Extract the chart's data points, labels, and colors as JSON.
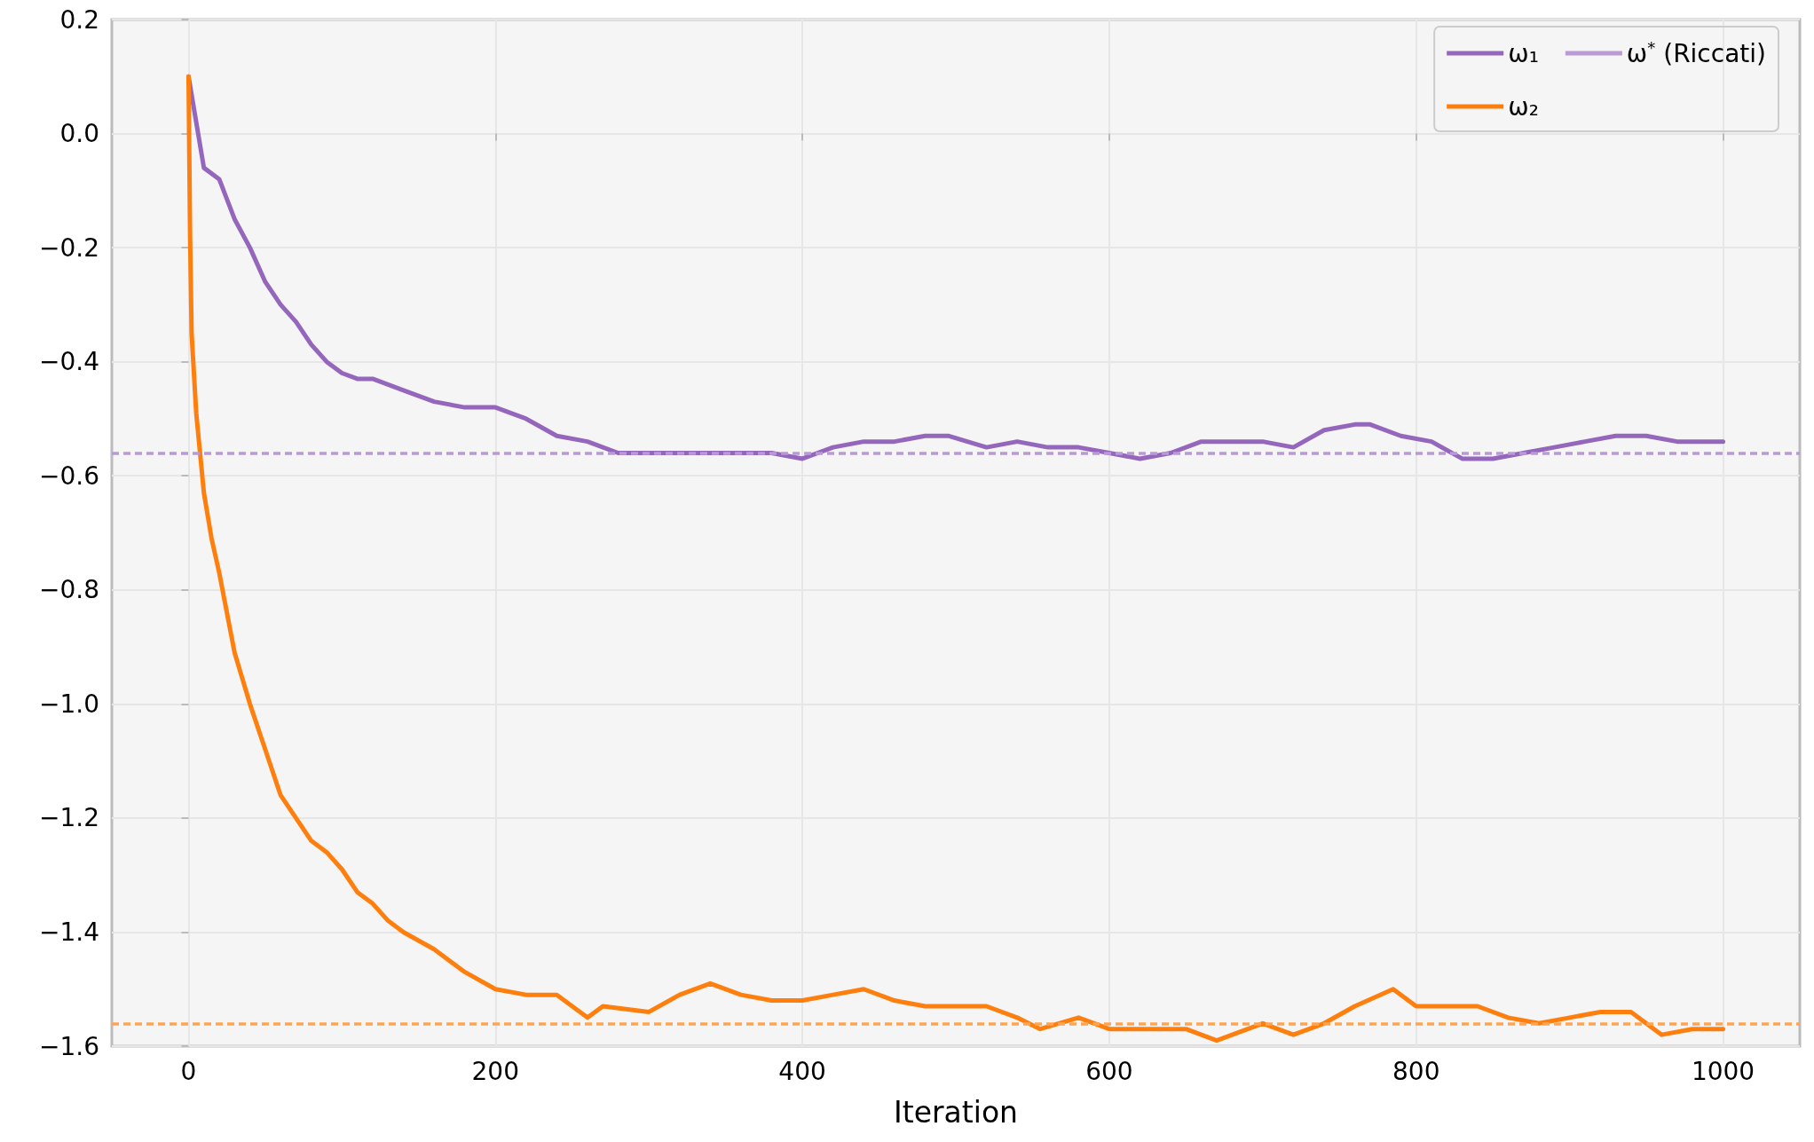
{
  "chart_data": {
    "type": "line",
    "xlabel": "Iteration",
    "xlim": [
      -50,
      1050
    ],
    "xticks": [
      0,
      200,
      400,
      600,
      800,
      1000
    ],
    "ylim": [
      -1.6,
      0.2
    ],
    "yticks": [
      -1.6,
      -1.4,
      -1.2,
      {
        "value": -1.0,
        "label": "−1.0"
      },
      -0.8,
      -0.6,
      -0.4,
      -0.2,
      {
        "value": 0,
        "label": "0.0"
      },
      0.2
    ],
    "grid": true,
    "legend": "top right",
    "line_style": "solid",
    "marker": "none",
    "series": [
      {
        "name": "ω₁",
        "color": "#9467bd",
        "x": [
          0,
          10,
          20,
          30,
          40,
          50,
          60,
          70,
          80,
          90,
          100,
          110,
          120,
          140,
          160,
          180,
          200,
          220,
          240,
          260,
          280,
          300,
          320,
          340,
          360,
          380,
          400,
          420,
          440,
          460,
          480,
          495,
          520,
          540,
          560,
          580,
          600,
          620,
          640,
          660,
          680,
          700,
          720,
          740,
          760,
          770,
          790,
          810,
          830,
          850,
          870,
          890,
          910,
          930,
          950,
          970,
          1000
        ],
        "values": [
          0.1,
          -0.06,
          -0.08,
          -0.15,
          -0.2,
          -0.26,
          -0.3,
          -0.33,
          -0.37,
          -0.4,
          -0.42,
          -0.43,
          -0.43,
          -0.45,
          -0.47,
          -0.48,
          -0.48,
          -0.5,
          -0.53,
          -0.54,
          -0.56,
          -0.56,
          -0.56,
          -0.56,
          -0.56,
          -0.56,
          -0.57,
          -0.55,
          -0.54,
          -0.54,
          -0.53,
          -0.53,
          -0.55,
          -0.54,
          -0.55,
          -0.55,
          -0.56,
          -0.57,
          -0.56,
          -0.54,
          -0.54,
          -0.54,
          -0.55,
          -0.52,
          -0.51,
          -0.51,
          -0.53,
          -0.54,
          -0.57,
          -0.57,
          -0.56,
          -0.55,
          -0.54,
          -0.53,
          -0.53,
          -0.54,
          -0.54
        ]
      },
      {
        "name": "ω₂",
        "color": "#ff7f0e",
        "x": [
          0,
          1,
          2,
          5,
          10,
          15,
          20,
          30,
          40,
          50,
          60,
          70,
          80,
          90,
          100,
          110,
          120,
          130,
          140,
          160,
          180,
          200,
          220,
          240,
          260,
          270,
          300,
          320,
          340,
          360,
          380,
          400,
          420,
          440,
          460,
          480,
          500,
          520,
          540,
          555,
          580,
          600,
          620,
          650,
          670,
          700,
          720,
          740,
          760,
          785,
          800,
          820,
          840,
          860,
          880,
          900,
          920,
          940,
          960,
          980,
          1000
        ],
        "values": [
          0.1,
          -0.18,
          -0.35,
          -0.49,
          -0.63,
          -0.71,
          -0.77,
          -0.91,
          -1.0,
          -1.08,
          -1.16,
          -1.2,
          -1.24,
          -1.26,
          -1.29,
          -1.33,
          -1.35,
          -1.38,
          -1.4,
          -1.43,
          -1.47,
          -1.5,
          -1.51,
          -1.51,
          -1.55,
          -1.53,
          -1.54,
          -1.51,
          -1.49,
          -1.51,
          -1.52,
          -1.52,
          -1.51,
          -1.5,
          -1.52,
          -1.53,
          -1.53,
          -1.53,
          -1.55,
          -1.57,
          -1.55,
          -1.57,
          -1.57,
          -1.57,
          -1.59,
          -1.56,
          -1.58,
          -1.56,
          -1.53,
          -1.5,
          -1.53,
          -1.53,
          -1.53,
          -1.55,
          -1.56,
          -1.55,
          -1.54,
          -1.54,
          -1.58,
          -1.57,
          -1.57
        ]
      }
    ],
    "ref_lines": [
      {
        "axis": "y",
        "value": -0.56,
        "label": "ω$^{*}$ (Riccati)",
        "color": "#b99ad6",
        "line_style": "dashed"
      },
      {
        "axis": "y",
        "value": -1.56,
        "color": "#ffa552",
        "line_style": "dashed"
      }
    ]
  }
}
